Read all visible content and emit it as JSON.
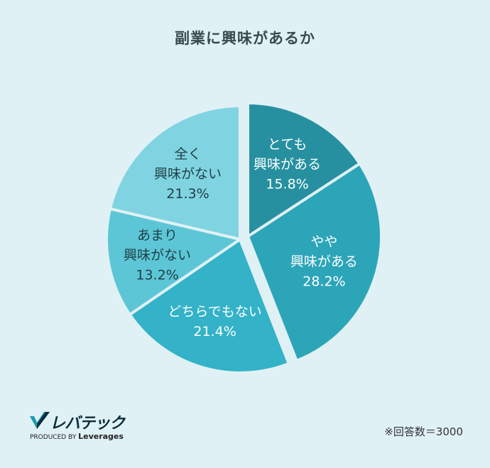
{
  "chart_data": {
    "type": "pie",
    "title": "副業に興味があるか",
    "slices": [
      {
        "label_lines": [
          "とても",
          "興味がある"
        ],
        "value": 15.8,
        "value_label": "15.8%",
        "color": "#2690a0"
      },
      {
        "label_lines": [
          "やや",
          "興味がある"
        ],
        "value": 28.2,
        "value_label": "28.2%",
        "color": "#2ca5b8"
      },
      {
        "label_lines": [
          "どちらでもない"
        ],
        "value": 21.4,
        "value_label": "21.4%",
        "color": "#33b2c8"
      },
      {
        "label_lines": [
          "あまり",
          "興味がない"
        ],
        "value": 13.2,
        "value_label": "13.2%",
        "color": "#5cc6d6"
      },
      {
        "label_lines": [
          "全く",
          "興味がない"
        ],
        "value": 21.3,
        "value_label": "21.3%",
        "color": "#80d4e1"
      }
    ]
  },
  "footer": {
    "note": "※回答数＝3000",
    "logo_name": "レバテック",
    "logo_sub_prefix": "PRODUCED BY",
    "logo_sub_brand": "Leverages"
  }
}
